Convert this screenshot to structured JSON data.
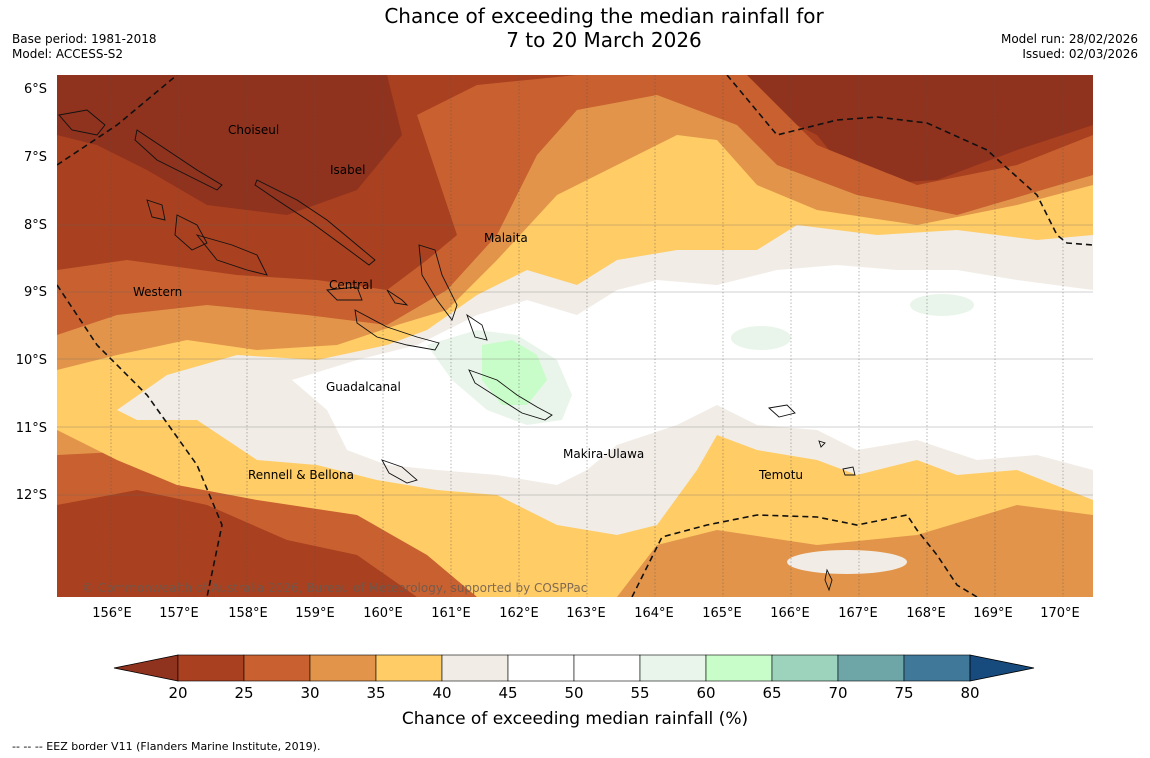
{
  "header": {
    "title_line1": "Chance of exceeding the median rainfall for",
    "title_line2": "7 to 20 March 2026",
    "base_period": "Base period: 1981-2018",
    "model": "Model: ACCESS-S2",
    "model_run": "Model run: 28/02/2026",
    "issued": "Issued: 02/03/2026"
  },
  "map": {
    "lat_labels": [
      "6°S",
      "7°S",
      "8°S",
      "9°S",
      "10°S",
      "11°S",
      "12°S"
    ],
    "lon_labels": [
      "156°E",
      "157°E",
      "158°E",
      "159°E",
      "160°E",
      "161°E",
      "162°E",
      "163°E",
      "164°E",
      "165°E",
      "166°E",
      "167°E",
      "168°E",
      "169°E",
      "170°E"
    ],
    "places": {
      "choiseul": "Choiseul",
      "isabel": "Isabel",
      "malaita": "Malaita",
      "central": "Central",
      "western": "Western",
      "guadalcanal": "Guadalcanal",
      "makira": "Makira-Ulawa",
      "temotu": "Temotu",
      "rennell": "Rennell & Bellona"
    },
    "copyright": "© Commonwealth of Australia 2026, Bureau of Meteorology, supported by COSPPac"
  },
  "colorbar": {
    "ticks": [
      "20",
      "25",
      "30",
      "35",
      "40",
      "45",
      "50",
      "55",
      "60",
      "65",
      "70",
      "75",
      "80"
    ],
    "colors": [
      "#a9401f",
      "#c86030",
      "#e2954a",
      "#ffcc66",
      "#f1ece6",
      "#ffffff",
      "#ffffff",
      "#e9f5ea",
      "#c8fcc8",
      "#9dd3bd",
      "#6ea6a8",
      "#3f7899"
    ],
    "under_color": "#8f321e",
    "over_color": "#174b7e",
    "label": "Chance of exceeding median rainfall (%)"
  },
  "legend": {
    "eez": "--  --  -- EEZ border V11 (Flanders Marine Institute, 2019)."
  }
}
